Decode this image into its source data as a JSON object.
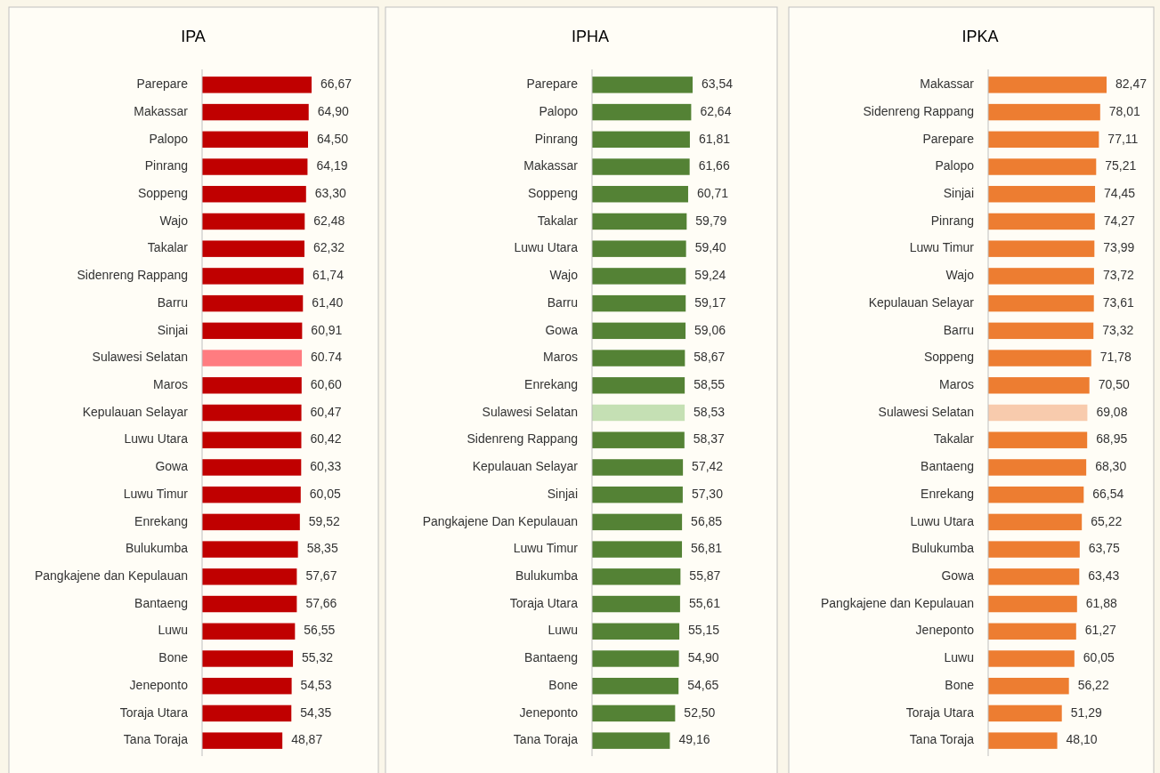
{
  "chart_data": [
    {
      "type": "bar",
      "orientation": "horizontal",
      "title": "IPA",
      "categories": [
        "Parepare",
        "Makassar",
        "Palopo",
        "Pinrang",
        "Soppeng",
        "Wajo",
        "Takalar",
        "Sidenreng Rappang",
        "Barru",
        "Sinjai",
        "Sulawesi Selatan",
        "Maros",
        "Kepulauan Selayar",
        "Luwu Utara",
        "Gowa",
        "Luwu Timur",
        "Enrekang",
        "Bulukumba",
        "Pangkajene dan Kepulauan",
        "Bantaeng",
        "Luwu",
        "Bone",
        "Jeneponto",
        "Toraja Utara",
        "Tana Toraja"
      ],
      "values": [
        66.67,
        64.9,
        64.5,
        64.19,
        63.3,
        62.48,
        62.32,
        61.74,
        61.4,
        60.91,
        60.74,
        60.6,
        60.47,
        60.42,
        60.33,
        60.05,
        59.52,
        58.35,
        57.67,
        57.66,
        56.55,
        55.32,
        54.53,
        54.35,
        48.87
      ],
      "value_labels": [
        "66,67",
        "64,90",
        "64,50",
        "64,19",
        "63,30",
        "62,48",
        "62,32",
        "61,74",
        "61,40",
        "60,91",
        "60.74",
        "60,60",
        "60,47",
        "60,42",
        "60,33",
        "60,05",
        "59,52",
        "58,35",
        "57,67",
        "57,66",
        "56,55",
        "55,32",
        "54,53",
        "54,35",
        "48,87"
      ],
      "colors": [
        "#c00000",
        "#c00000",
        "#c00000",
        "#c00000",
        "#c00000",
        "#c00000",
        "#c00000",
        "#c00000",
        "#c00000",
        "#c00000",
        "#ff7c80",
        "#c00000",
        "#c00000",
        "#c00000",
        "#c00000",
        "#c00000",
        "#c00000",
        "#c00000",
        "#c00000",
        "#c00000",
        "#c00000",
        "#c00000",
        "#c00000",
        "#c00000",
        "#c00000"
      ]
    },
    {
      "type": "bar",
      "orientation": "horizontal",
      "title": "IPHA",
      "categories": [
        "Parepare",
        "Palopo",
        "Pinrang",
        "Makassar",
        "Soppeng",
        "Takalar",
        "Luwu Utara",
        "Wajo",
        "Barru",
        "Gowa",
        "Maros",
        "Enrekang",
        "Sulawesi Selatan",
        "Sidenreng Rappang",
        "Kepulauan Selayar",
        "Sinjai",
        "Pangkajene Dan Kepulauan",
        "Luwu Timur",
        "Bulukumba",
        "Toraja Utara",
        "Luwu",
        "Bantaeng",
        "Bone",
        "Jeneponto",
        "Tana Toraja"
      ],
      "values": [
        63.54,
        62.64,
        61.81,
        61.66,
        60.71,
        59.79,
        59.4,
        59.24,
        59.17,
        59.06,
        58.67,
        58.55,
        58.53,
        58.37,
        57.42,
        57.3,
        56.85,
        56.81,
        55.87,
        55.61,
        55.15,
        54.9,
        54.65,
        52.5,
        49.16
      ],
      "value_labels": [
        "63,54",
        "62,64",
        "61,81",
        "61,66",
        "60,71",
        "59,79",
        "59,40",
        "59,24",
        "59,17",
        "59,06",
        "58,67",
        "58,55",
        "58,53",
        "58,37",
        "57,42",
        "57,30",
        "56,85",
        "56,81",
        "55,87",
        "55,61",
        "55,15",
        "54,90",
        "54,65",
        "52,50",
        "49,16"
      ],
      "colors": [
        "#548235",
        "#548235",
        "#548235",
        "#548235",
        "#548235",
        "#548235",
        "#548235",
        "#548235",
        "#548235",
        "#548235",
        "#548235",
        "#548235",
        "#c5e0b4",
        "#548235",
        "#548235",
        "#548235",
        "#548235",
        "#548235",
        "#548235",
        "#548235",
        "#548235",
        "#548235",
        "#548235",
        "#548235",
        "#548235"
      ]
    },
    {
      "type": "bar",
      "orientation": "horizontal",
      "title": "IPKA",
      "categories": [
        "Makassar",
        "Sidenreng Rappang",
        "Parepare",
        "Palopo",
        "Sinjai",
        "Pinrang",
        "Luwu Timur",
        "Wajo",
        "Kepulauan Selayar",
        "Barru",
        "Soppeng",
        "Maros",
        "Sulawesi Selatan",
        "Takalar",
        "Bantaeng",
        "Enrekang",
        "Luwu Utara",
        "Bulukumba",
        "Gowa",
        "Pangkajene dan Kepulauan",
        "Jeneponto",
        "Luwu",
        "Bone",
        "Toraja Utara",
        "Tana Toraja"
      ],
      "values": [
        82.47,
        78.01,
        77.11,
        75.21,
        74.45,
        74.27,
        73.99,
        73.72,
        73.61,
        73.32,
        71.78,
        70.5,
        69.08,
        68.95,
        68.3,
        66.54,
        65.22,
        63.75,
        63.43,
        61.88,
        61.27,
        60.05,
        56.22,
        51.29,
        48.1
      ],
      "value_labels": [
        "82,47",
        "78,01",
        "77,11",
        "75,21",
        "74,45",
        "74,27",
        "73,99",
        "73,72",
        "73,61",
        "73,32",
        "71,78",
        "70,50",
        "69,08",
        "68,95",
        "68,30",
        "66,54",
        "65,22",
        "63,75",
        "63,43",
        "61,88",
        "61,27",
        "60,05",
        "56,22",
        "51,29",
        "48,10"
      ],
      "colors": [
        "#ed7d31",
        "#ed7d31",
        "#ed7d31",
        "#ed7d31",
        "#ed7d31",
        "#ed7d31",
        "#ed7d31",
        "#ed7d31",
        "#ed7d31",
        "#ed7d31",
        "#ed7d31",
        "#ed7d31",
        "#f8cbad",
        "#ed7d31",
        "#ed7d31",
        "#ed7d31",
        "#ed7d31",
        "#ed7d31",
        "#ed7d31",
        "#ed7d31",
        "#ed7d31",
        "#ed7d31",
        "#ed7d31",
        "#ed7d31",
        "#ed7d31"
      ]
    }
  ]
}
